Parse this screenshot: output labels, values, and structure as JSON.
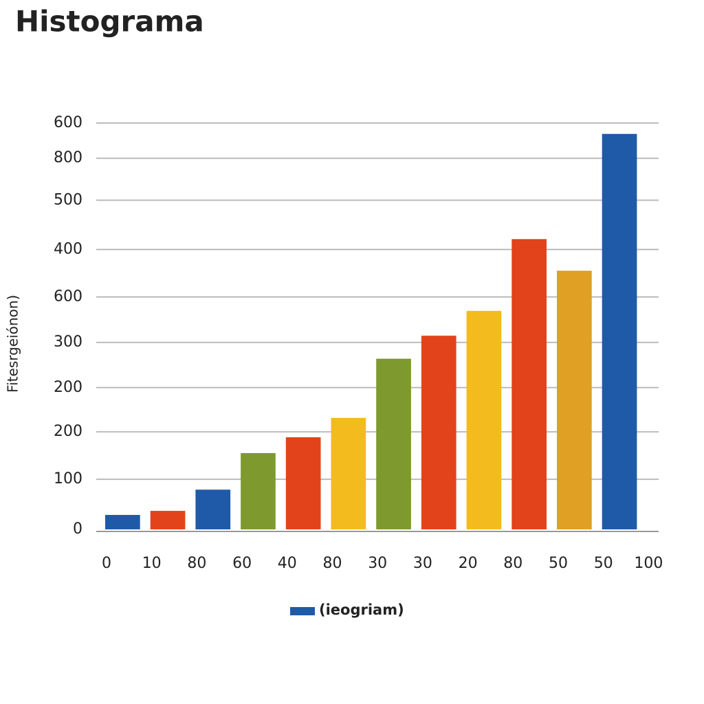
{
  "chart_data": {
    "type": "histogram",
    "title": "Histograma",
    "y_label": "Fitesrgeiónon)",
    "bins": [
      "0",
      "10",
      "80",
      "60",
      "40",
      "80",
      "30",
      "30",
      "20",
      "80",
      "50",
      "50",
      "100"
    ],
    "series": [
      {
        "name": "(ieogriam)",
        "color": "#1f5aa8",
        "colors": [
          "#1f5aa8",
          "#e2431a",
          "#1f5aa8",
          "#7e9a2e",
          "#e2431a",
          "#f4bb1e",
          "#7e9a2e",
          "#e2431a",
          "#f4bb1e",
          "#e2431a",
          "#e0a024",
          "#1f5aa8"
        ],
        "values": [
          32,
          41,
          88,
          169,
          204,
          247,
          378,
          429,
          484,
          643,
          573,
          876
        ]
      }
    ],
    "ylim": [
      0,
      900
    ],
    "yticks": [
      0,
      {
        "value": 111,
        "label": "100"
      },
      {
        "value": 216,
        "label": "200"
      },
      {
        "value": 314,
        "label": "200"
      },
      {
        "value": 414,
        "label": "300"
      },
      {
        "value": 515,
        "label": "600"
      },
      {
        "value": 620,
        "label": "400"
      },
      {
        "value": 729,
        "label": "500"
      },
      {
        "value": 822,
        "label": "800"
      },
      {
        "value": 900,
        "label": "600"
      }
    ],
    "grid": true
  }
}
